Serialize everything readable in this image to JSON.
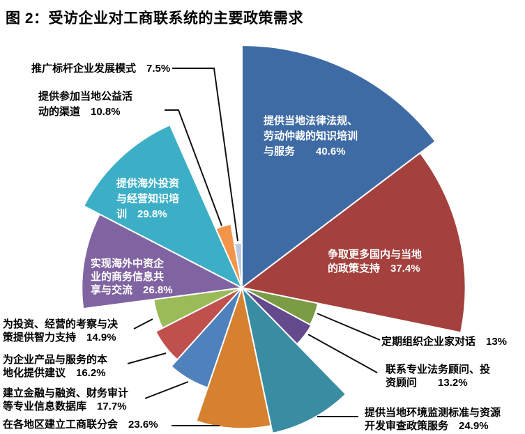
{
  "title": "图 2：受访企业对工商联系统的主要政策需求",
  "chart_data": {
    "type": "pie",
    "variant": "variable-radius-pie (slice angle and radius both proportional to value)",
    "unit": "%",
    "start_angle_deg": -90,
    "direction": "clockwise",
    "slice_border_color": "#FFFFFF",
    "leader_line_color": "#111111",
    "slices": [
      {
        "label": "提供当地法律法规、劳动仲裁的知识培训与服务",
        "value": 40.6,
        "color": "#3F6BA5",
        "label_placement": "inside",
        "label_lines": [
          "提供当地法律法规、",
          "劳动仲裁的知识培训",
          "与服务　　40.6%"
        ]
      },
      {
        "label": "争取更多国内与当地的政策支持",
        "value": 37.4,
        "color": "#A4403D",
        "label_placement": "inside",
        "label_lines": [
          "争取更多国内与当地",
          "的政策支持　37.4%"
        ]
      },
      {
        "label": "定期组织企业家对话",
        "value": 13.0,
        "color": "#7B9C45",
        "label_placement": "outside",
        "label_lines": [
          "定期组织企业家对话　13%"
        ]
      },
      {
        "label": "联系专业法务顾问、投资顾问",
        "value": 13.2,
        "color": "#64498C",
        "label_placement": "outside",
        "label_lines": [
          "联系专业法务顾问、投",
          "资顾问　　13.2%"
        ]
      },
      {
        "label": "提供当地环境监测标准与资源开发审查政策服务",
        "value": 24.9,
        "color": "#3A8CA3",
        "label_placement": "outside",
        "label_lines": [
          "提供当地环境监测标准与资源",
          "开发审查政策服务　24.9%"
        ]
      },
      {
        "label": "在各地区建立工商联分会",
        "value": 23.6,
        "color": "#D5812F",
        "label_placement": "outside",
        "label_lines": [
          "在各地区建立工商联分会　23.6%"
        ]
      },
      {
        "label": "建立金融与融资、财务审计等专业信息数据库",
        "value": 17.7,
        "color": "#4F81BD",
        "label_placement": "outside",
        "label_lines": [
          "建立金融与融资、财务审计",
          "等专业信息数据库　17.7%"
        ]
      },
      {
        "label": "为企业产品与服务的本地化提供建议",
        "value": 16.2,
        "color": "#C0504D",
        "label_placement": "outside",
        "label_lines": [
          "为企业产品与服务的本",
          "地化提供建议　16.2%"
        ]
      },
      {
        "label": "为投资、经营的考察与决策提供智力支持",
        "value": 14.9,
        "color": "#9BBB59",
        "label_placement": "outside",
        "label_lines": [
          "为投资、经营的考察与决",
          "策提供智力支持　14.9%"
        ]
      },
      {
        "label": "实现海外中资企业的商务信息共享与交流",
        "value": 26.8,
        "color": "#8064A2",
        "label_placement": "inside",
        "label_lines": [
          "实现海外中资企",
          "业的商务信息共",
          "享与交流　26.8%"
        ]
      },
      {
        "label": "提供海外投资与经营知识培训",
        "value": 29.8,
        "color": "#3CAFC7",
        "label_placement": "inside",
        "label_lines": [
          "提供海外投资",
          "与经营知识培",
          "训　29.8%"
        ]
      },
      {
        "label": "提供参加当地公益活动的渠道",
        "value": 10.8,
        "color": "#F2954B",
        "label_placement": "outside",
        "label_lines": [
          "提供参加当地公益活",
          "动的渠道　10.8%"
        ]
      },
      {
        "label": "推广标杆企业发展模式",
        "value": 7.5,
        "color": "#BCCBE0",
        "label_placement": "outside",
        "label_lines": [
          "推广标杆企业发展模式　7.5%"
        ]
      }
    ]
  }
}
